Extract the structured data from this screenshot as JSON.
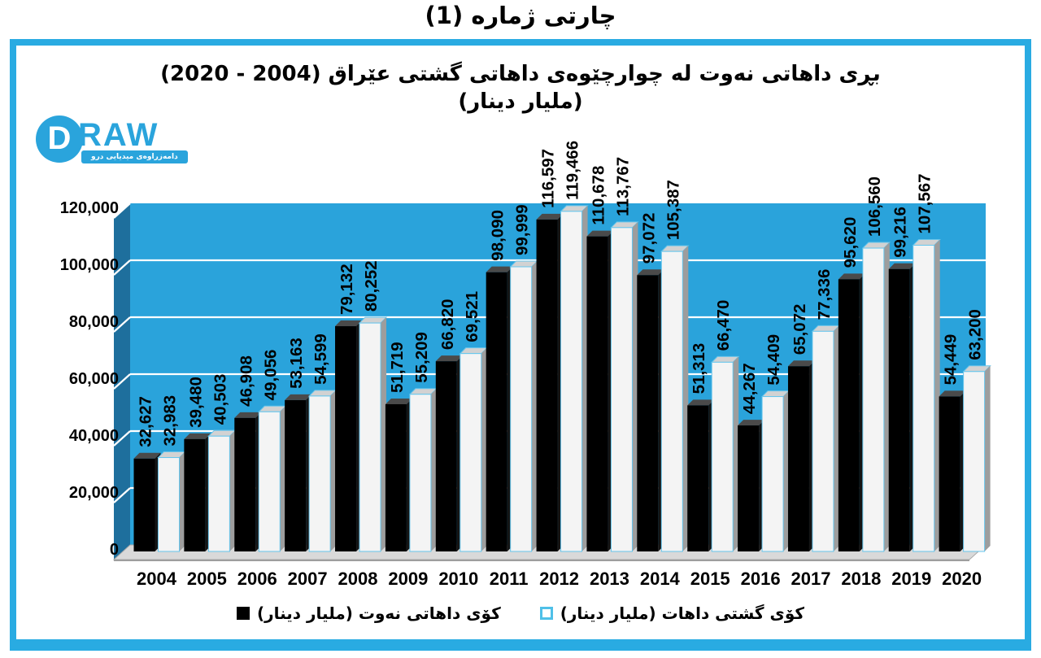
{
  "page_title": "چارتی ژماره (1)",
  "logo": {
    "d_letter": "D",
    "raw_text": "RAW",
    "banner_text": "دامەزراوەی میدیایی درو"
  },
  "colors": {
    "frame_border": "#29abe2",
    "plot_background": "#2aa3db",
    "side_wall": "#1e6f9d",
    "floor": "#d9d9d9",
    "gridline": "#ffffff",
    "series_oil": "#000000",
    "series_total": "#f4f4f4",
    "white_bar_outline": "#66c5ec",
    "legend_white_swatch_border": "#4fc0e8"
  },
  "chart_data": {
    "type": "bar",
    "style": "3d-clustered-column",
    "title": "بڕی داهاتی نەوت لە چوارچێوەی داهاتی گشتی عێراق (2004 - 2020)",
    "subtitle": "(ملیار دینار)",
    "categories": [
      "2004",
      "2005",
      "2006",
      "2007",
      "2008",
      "2009",
      "2010",
      "2011",
      "2012",
      "2013",
      "2014",
      "2015",
      "2016",
      "2017",
      "2018",
      "2019",
      "2020"
    ],
    "series": [
      {
        "name": "كۆی داهاتی نەوت (ملیار دینار)",
        "color": "#000000",
        "values": [
          32627,
          39480,
          46908,
          53163,
          79132,
          51719,
          66820,
          98090,
          116597,
          110678,
          97072,
          51313,
          44267,
          65072,
          95620,
          99216,
          54449
        ]
      },
      {
        "name": "كۆی گشتی داهات (ملیار دینار)",
        "color": "#f4f4f4",
        "values": [
          32983,
          40503,
          49056,
          54599,
          80252,
          55209,
          69521,
          99999,
          119466,
          113767,
          105387,
          66470,
          54409,
          77336,
          106560,
          107567,
          63200
        ]
      }
    ],
    "ylim": [
      0,
      120000
    ],
    "yticks": [
      0,
      20000,
      40000,
      60000,
      80000,
      100000,
      120000
    ],
    "ytick_labels": [
      "0",
      "20,000",
      "40,000",
      "60,000",
      "80,000",
      "100,000",
      "120,000"
    ],
    "grid": true,
    "data_labels": "rotated-90-above-bars",
    "legend_position": "bottom"
  }
}
